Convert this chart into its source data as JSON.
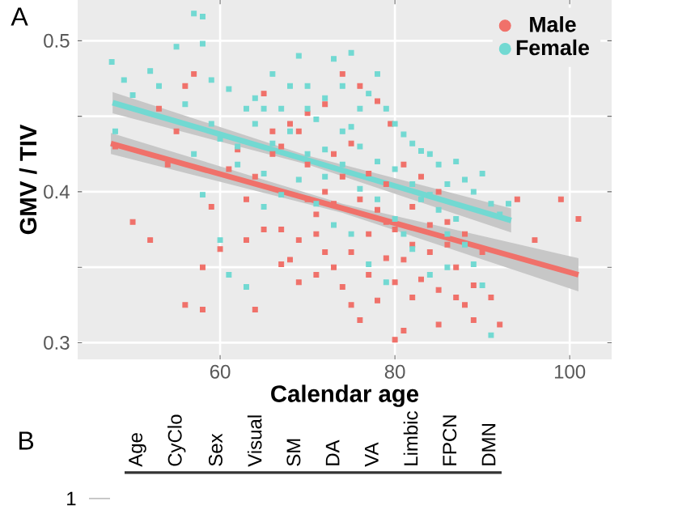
{
  "chart_data": [
    {
      "type": "scatter",
      "title": "A",
      "xlabel": "Calendar age",
      "ylabel": "GMV / TIV",
      "xlim": [
        43.7,
        104.8
      ],
      "ylim": [
        0.289,
        0.527
      ],
      "xticks": [
        60,
        80,
        100
      ],
      "yticks": [
        0.3,
        {
          "value": 0.35,
          "label": null
        },
        0.4,
        {
          "value": 0.45,
          "label": null
        },
        0.5
      ],
      "grid": true,
      "legend": "top right",
      "marker": "square",
      "series": [
        {
          "name": "Male",
          "color": "#f0716a",
          "x": [
            48,
            50,
            52,
            53,
            54,
            55,
            56,
            57,
            58,
            59,
            56,
            58,
            60,
            61,
            62,
            63,
            64,
            65,
            66,
            67,
            68,
            69,
            70,
            71,
            72,
            73,
            74,
            75,
            76,
            77,
            78,
            79,
            80,
            81,
            82,
            83,
            84,
            85,
            86,
            87,
            88,
            89,
            90,
            91,
            92,
            94,
            96,
            99,
            101,
            79.5,
            78,
            76,
            74,
            72,
            70,
            68,
            66,
            64,
            70,
            72,
            74,
            76,
            78,
            80,
            82,
            84,
            86,
            88,
            73,
            75,
            77,
            79,
            81,
            83,
            85,
            71,
            69,
            67,
            65,
            63,
            75,
            77,
            79,
            81,
            85,
            87,
            89,
            73,
            71,
            69,
            67,
            80,
            82
          ],
          "values": [
            0.43,
            0.38,
            0.368,
            0.455,
            0.418,
            0.44,
            0.47,
            0.478,
            0.35,
            0.39,
            0.325,
            0.322,
            0.362,
            0.415,
            0.428,
            0.395,
            0.322,
            0.465,
            0.44,
            0.375,
            0.355,
            0.34,
            0.395,
            0.372,
            0.36,
            0.35,
            0.337,
            0.325,
            0.315,
            0.345,
            0.328,
            0.356,
            0.302,
            0.308,
            0.33,
            0.342,
            0.36,
            0.335,
            0.38,
            0.35,
            0.325,
            0.338,
            0.36,
            0.33,
            0.312,
            0.395,
            0.368,
            0.395,
            0.382,
            0.445,
            0.46,
            0.47,
            0.478,
            0.458,
            0.452,
            0.445,
            0.425,
            0.41,
            0.418,
            0.4,
            0.41,
            0.395,
            0.388,
            0.375,
            0.39,
            0.378,
            0.365,
            0.372,
            0.425,
            0.432,
            0.412,
            0.405,
            0.418,
            0.41,
            0.4,
            0.345,
            0.368,
            0.352,
            0.375,
            0.368,
            0.36,
            0.372,
            0.38,
            0.355,
            0.312,
            0.33,
            0.315,
            0.392,
            0.385,
            0.44,
            0.43,
            0.34,
            0.365
          ]
        },
        {
          "name": "Female",
          "color": "#72d9d2",
          "x": [
            47.6,
            49,
            50,
            48,
            52,
            53,
            55,
            57,
            58,
            58,
            56,
            59,
            57,
            58,
            60,
            61,
            63,
            62,
            64,
            65,
            66,
            68,
            69,
            70,
            71,
            72,
            73,
            74,
            75,
            75,
            76,
            77,
            78,
            79,
            80,
            81,
            82,
            83,
            84,
            85,
            86,
            87,
            88,
            89,
            90,
            91,
            92,
            93,
            91,
            90,
            88,
            86,
            84,
            82,
            80,
            78,
            76,
            74,
            72,
            70,
            68,
            66,
            64,
            62,
            67,
            71,
            73,
            75,
            77,
            79,
            81,
            83,
            85,
            87,
            89,
            69,
            65,
            63,
            61,
            60,
            59,
            76,
            78,
            80,
            74,
            72,
            70,
            67,
            65,
            86,
            82,
            84
          ],
          "values": [
            0.486,
            0.474,
            0.464,
            0.44,
            0.48,
            0.47,
            0.496,
            0.518,
            0.516,
            0.498,
            0.458,
            0.474,
            0.425,
            0.398,
            0.368,
            0.345,
            0.337,
            0.43,
            0.462,
            0.455,
            0.478,
            0.47,
            0.49,
            0.455,
            0.448,
            0.462,
            0.488,
            0.47,
            0.443,
            0.492,
            0.455,
            0.465,
            0.478,
            0.455,
            0.445,
            0.438,
            0.432,
            0.427,
            0.425,
            0.418,
            0.405,
            0.42,
            0.408,
            0.4,
            0.412,
            0.392,
            0.385,
            0.392,
            0.305,
            0.338,
            0.365,
            0.372,
            0.345,
            0.362,
            0.382,
            0.395,
            0.402,
            0.418,
            0.41,
            0.425,
            0.44,
            0.432,
            0.445,
            0.418,
            0.398,
            0.392,
            0.378,
            0.372,
            0.352,
            0.34,
            0.372,
            0.395,
            0.388,
            0.382,
            0.352,
            0.408,
            0.412,
            0.455,
            0.468,
            0.435,
            0.445,
            0.43,
            0.42,
            0.415,
            0.44,
            0.428,
            0.47,
            0.455,
            0.39,
            0.35,
            0.405,
            0.398
          ]
        },
        {
          "type": "line",
          "marker": "none",
          "color": "#f0716a",
          "x": [
            47.5,
            74,
            101
          ],
          "values": [
            0.432,
            0.389,
            0.345
          ],
          "lower": [
            0.425,
            0.386,
            0.334
          ],
          "upper": [
            0.439,
            0.392,
            0.356
          ]
        },
        {
          "type": "line",
          "marker": "none",
          "color": "#72d9d2",
          "x": [
            47.7,
            70,
            93.3
          ],
          "values": [
            0.459,
            0.421,
            0.381
          ],
          "lower": [
            0.452,
            0.418,
            0.373
          ],
          "upper": [
            0.466,
            0.424,
            0.389
          ]
        }
      ]
    },
    {
      "type": "other",
      "title": "B",
      "categories": [
        "Age",
        "CyClo",
        "Sex",
        "Visual",
        "SM",
        "DA",
        "VA",
        "Limbic",
        "FPCN",
        "DMN"
      ],
      "annotations": [
        "1"
      ]
    }
  ]
}
